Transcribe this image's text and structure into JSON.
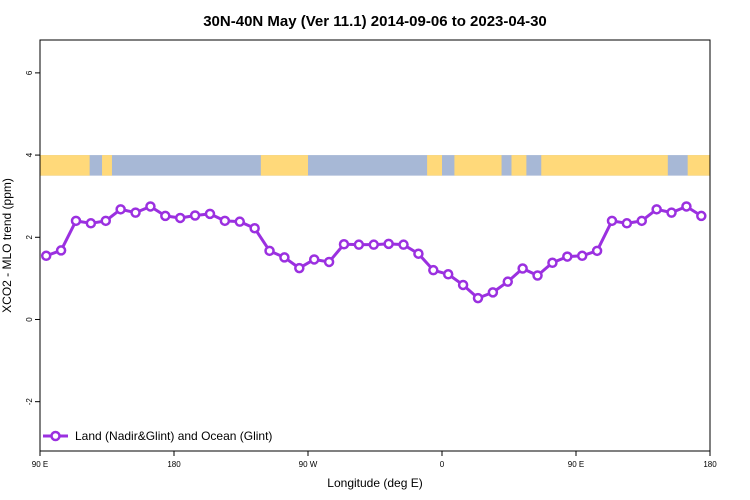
{
  "chart_data": {
    "type": "line",
    "title": "30N-40N May (Ver 11.1)   2014-09-06 to 2023-04-30",
    "xlabel": "Longitude (deg E)",
    "ylabel": "XCO2 - MLO trend (ppm)",
    "xlim": [
      -90,
      180
    ],
    "ylim": [
      -3.2,
      6.8
    ],
    "x_ticks": [
      {
        "value": -90,
        "label": "90 E"
      },
      {
        "value": -36,
        "label": "180"
      },
      {
        "value": 18,
        "label": "90 W"
      },
      {
        "value": 72,
        "label": "0"
      },
      {
        "value": 126,
        "label": "90 E"
      },
      {
        "value": 180,
        "label": "180"
      }
    ],
    "y_ticks": [
      -2,
      0,
      2,
      4,
      6
    ],
    "grid": false,
    "legend_position": "bottom-left",
    "map_band": {
      "ymin": 3.5,
      "ymax": 4.0,
      "ocean_color": "#a7b8d6",
      "land_color": "#ffd97a",
      "land_segments": [
        [
          -90,
          -70
        ],
        [
          -65,
          -61
        ],
        [
          -1,
          18
        ],
        [
          66,
          72
        ],
        [
          77,
          96
        ],
        [
          100,
          106
        ],
        [
          112,
          163
        ],
        [
          171,
          180
        ]
      ]
    },
    "series": [
      {
        "name": "Land (Nadir&Glint) and Ocean (Glint)",
        "color": "#9b30e0",
        "x": [
          -87.5,
          -81.5,
          -75.5,
          -69.5,
          -63.5,
          -57.5,
          -51.5,
          -45.5,
          -39.5,
          -33.5,
          -27.5,
          -21.5,
          -15.5,
          -9.5,
          -3.5,
          2.5,
          8.5,
          14.5,
          20.5,
          26.5,
          32.5,
          38.5,
          44.5,
          50.5,
          56.5,
          62.5,
          68.5,
          74.5,
          80.5,
          86.5,
          92.5,
          98.5,
          104.5,
          110.5,
          116.5,
          122.5,
          128.5,
          134.5,
          140.5,
          146.5,
          152.5,
          158.5,
          164.5,
          170.5,
          176.5
        ],
        "values": [
          1.55,
          1.68,
          2.4,
          2.34,
          2.4,
          2.68,
          2.6,
          2.75,
          2.52,
          2.47,
          2.53,
          2.57,
          2.4,
          2.38,
          2.22,
          1.67,
          1.51,
          1.25,
          1.46,
          1.4,
          1.83,
          1.82,
          1.82,
          1.84,
          1.82,
          1.6,
          1.2,
          1.1,
          0.84,
          0.52,
          0.66,
          0.92,
          1.24,
          1.07,
          1.38,
          1.53,
          1.55,
          1.67,
          2.4,
          2.34,
          2.4,
          2.68,
          2.6,
          2.75,
          2.52
        ]
      }
    ]
  }
}
